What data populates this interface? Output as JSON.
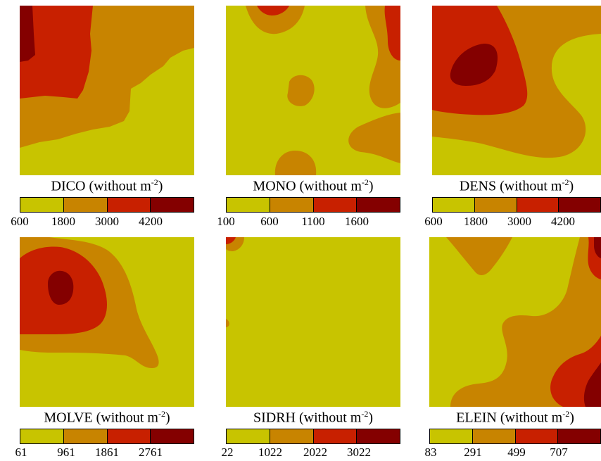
{
  "colors": {
    "level1": "#c8c400",
    "level2": "#c88400",
    "level3": "#c82000",
    "level4": "#840000"
  },
  "caption_suffix_pre": "(without m",
  "caption_suffix_sup": "-2",
  "caption_suffix_post": ")",
  "chart_data": [
    {
      "type": "heatmap",
      "title": "DICO",
      "legend_ticks": [
        "600",
        "1800",
        "3000",
        "4200"
      ]
    },
    {
      "type": "heatmap",
      "title": "MONO",
      "legend_ticks": [
        "100",
        "600",
        "1100",
        "1600"
      ]
    },
    {
      "type": "heatmap",
      "title": "DENS",
      "legend_ticks": [
        "600",
        "1800",
        "3000",
        "4200"
      ]
    },
    {
      "type": "heatmap",
      "title": "MOLVE",
      "legend_ticks": [
        "61",
        "961",
        "1861",
        "2761"
      ]
    },
    {
      "type": "heatmap",
      "title": "SIDRH",
      "legend_ticks": [
        "22",
        "1022",
        "2022",
        "3022"
      ]
    },
    {
      "type": "heatmap",
      "title": "ELEIN",
      "legend_ticks": [
        "83",
        "291",
        "499",
        "707"
      ]
    }
  ]
}
